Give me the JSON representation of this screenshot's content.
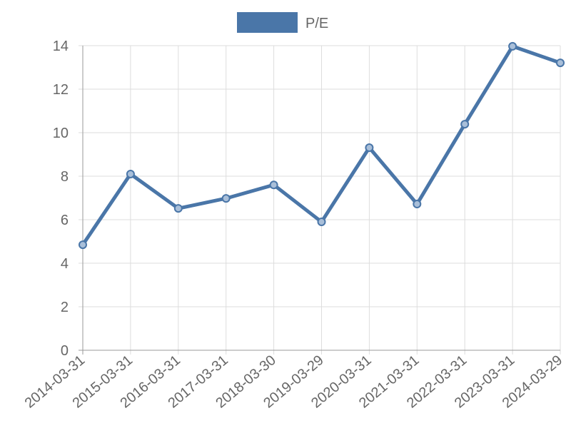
{
  "chart_data": {
    "type": "line",
    "categories": [
      "2014-03-31",
      "2015-03-31",
      "2016-03-31",
      "2017-03-31",
      "2018-03-30",
      "2019-03-29",
      "2020-03-31",
      "2021-03-31",
      "2022-03-31",
      "2023-03-31",
      "2024-03-29"
    ],
    "series": [
      {
        "name": "P/E",
        "color": "#4a76a8",
        "values": [
          4.85,
          8.1,
          6.52,
          6.98,
          7.6,
          5.9,
          9.31,
          6.72,
          10.39,
          13.97,
          13.21
        ]
      }
    ],
    "ylim": [
      0,
      14
    ],
    "yticks": [
      0,
      2,
      4,
      6,
      8,
      10,
      12,
      14
    ],
    "grid": true,
    "legend": "top"
  }
}
